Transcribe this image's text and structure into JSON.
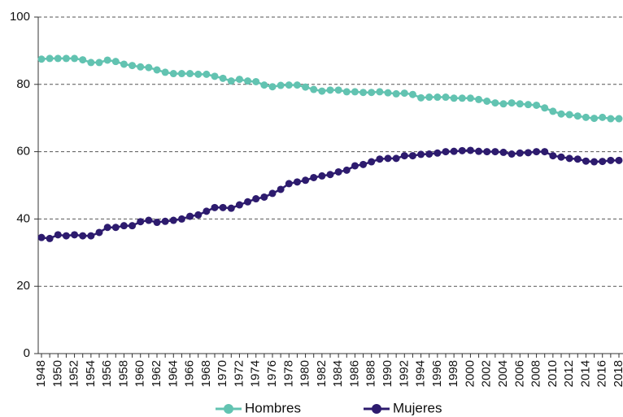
{
  "chart_data": {
    "type": "line",
    "categories": [
      "1948",
      null,
      "1950",
      null,
      "1952",
      null,
      "1954",
      null,
      "1956",
      null,
      "1958",
      null,
      "1960",
      null,
      "1962",
      null,
      "1964",
      null,
      "1966",
      null,
      "1968",
      null,
      "1970",
      null,
      "1972",
      null,
      "1974",
      null,
      "1976",
      null,
      "1978",
      null,
      "1980",
      null,
      "1982",
      null,
      "1984",
      null,
      "1986",
      null,
      "1988",
      null,
      "1990",
      null,
      "1992",
      null,
      "1994",
      null,
      "1996",
      null,
      "1998",
      null,
      "2000",
      null,
      "2002",
      null,
      "2004",
      null,
      "2006",
      null,
      "2008",
      null,
      "2010",
      null,
      "2012",
      null,
      "2014",
      null,
      "2016",
      null,
      "2018"
    ],
    "series": [
      {
        "name": "Hombres",
        "color": "#62c3b1",
        "values": [
          87.5,
          87.7,
          87.7,
          87.7,
          87.7,
          87.3,
          86.5,
          86.5,
          87.2,
          86.8,
          86,
          85.6,
          85.2,
          85,
          84.3,
          83.6,
          83.2,
          83.2,
          83.2,
          83,
          83,
          82.4,
          81.8,
          81,
          81.5,
          81,
          80.8,
          79.8,
          79.3,
          79.7,
          79.8,
          79.8,
          79.2,
          78.5,
          78,
          78.3,
          78.3,
          77.8,
          77.8,
          77.6,
          77.6,
          77.8,
          77.5,
          77.2,
          77.4,
          77,
          76,
          76.2,
          76.2,
          76.2,
          75.9,
          75.9,
          75.9,
          75.5,
          75,
          74.5,
          74.2,
          74.5,
          74.2,
          74,
          73.8,
          73,
          72,
          71.2,
          71,
          70.6,
          70.2,
          69.9,
          70.2,
          69.8,
          69.8
        ]
      },
      {
        "name": "Mujeres",
        "color": "#2d1b6e",
        "values": [
          34.5,
          34.2,
          35.3,
          35,
          35.3,
          35,
          35,
          36,
          37.5,
          37.5,
          38,
          38,
          39.2,
          39.6,
          39,
          39.3,
          39.6,
          40,
          40.8,
          41.2,
          42.3,
          43.4,
          43.4,
          43.2,
          44.2,
          45.1,
          46,
          46.5,
          47.6,
          48.8,
          50.5,
          51,
          51.5,
          52.3,
          52.8,
          53.2,
          54,
          54.5,
          55.8,
          56.2,
          57,
          57.8,
          58,
          58,
          58.8,
          58.8,
          59.2,
          59.3,
          59.6,
          60,
          60.1,
          60.3,
          60.4,
          60.1,
          60,
          60,
          59.8,
          59.3,
          59.6,
          59.7,
          60,
          60,
          58.8,
          58.4,
          58,
          57.8,
          57.2,
          57,
          57.1,
          57.4,
          57.4
        ]
      }
    ],
    "ylim": [
      0,
      100
    ],
    "yticks": [
      0,
      20,
      40,
      60,
      80,
      100
    ],
    "grid": true,
    "legend": "bottom"
  }
}
